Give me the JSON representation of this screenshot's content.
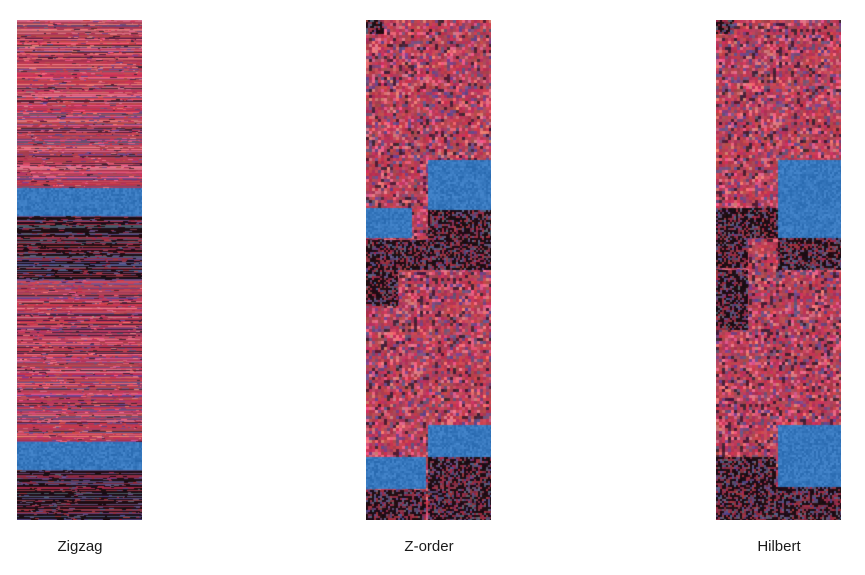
{
  "panels": [
    {
      "label": "Zigzag"
    },
    {
      "label": "Z-order"
    },
    {
      "label": "Hilbert"
    }
  ],
  "colors": {
    "texture_red": "#b33a55",
    "texture_pink": "#d85a78",
    "texture_purple": "#6a3f72",
    "texture_dark": "#2a1220",
    "block_blue": "#3f80c4",
    "background": "#ffffff"
  }
}
